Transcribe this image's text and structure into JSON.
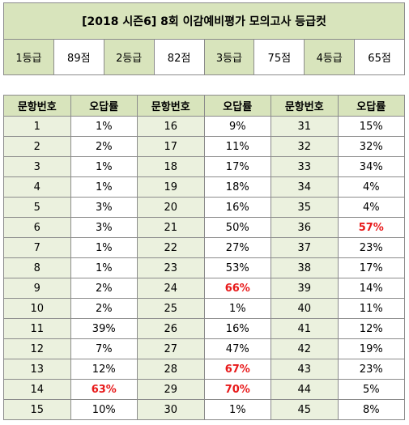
{
  "title": "[2018 시즌6] 8회 이감예비평가 모의고사 등급컷",
  "grade_cuts": [
    {
      "grade": "1등급",
      "score": "89점"
    },
    {
      "grade": "2등급",
      "score": "82점"
    },
    {
      "grade": "3등급",
      "score": "75점"
    },
    {
      "grade": "4등급",
      "score": "65점"
    }
  ],
  "table": {
    "headers": [
      "문항번호",
      "오답률",
      "문항번호",
      "오답률",
      "문항번호",
      "오답률"
    ],
    "rows": [
      [
        {
          "n": "1",
          "r": "1%"
        },
        {
          "n": "16",
          "r": "9%"
        },
        {
          "n": "31",
          "r": "15%"
        }
      ],
      [
        {
          "n": "2",
          "r": "2%"
        },
        {
          "n": "17",
          "r": "11%"
        },
        {
          "n": "32",
          "r": "32%"
        }
      ],
      [
        {
          "n": "3",
          "r": "1%"
        },
        {
          "n": "18",
          "r": "17%"
        },
        {
          "n": "33",
          "r": "34%"
        }
      ],
      [
        {
          "n": "4",
          "r": "1%"
        },
        {
          "n": "19",
          "r": "18%"
        },
        {
          "n": "34",
          "r": "4%"
        }
      ],
      [
        {
          "n": "5",
          "r": "3%"
        },
        {
          "n": "20",
          "r": "16%"
        },
        {
          "n": "35",
          "r": "4%"
        }
      ],
      [
        {
          "n": "6",
          "r": "3%"
        },
        {
          "n": "21",
          "r": "50%"
        },
        {
          "n": "36",
          "r": "57%",
          "hi": true
        }
      ],
      [
        {
          "n": "7",
          "r": "1%"
        },
        {
          "n": "22",
          "r": "27%"
        },
        {
          "n": "37",
          "r": "23%"
        }
      ],
      [
        {
          "n": "8",
          "r": "1%"
        },
        {
          "n": "23",
          "r": "53%"
        },
        {
          "n": "38",
          "r": "17%"
        }
      ],
      [
        {
          "n": "9",
          "r": "2%"
        },
        {
          "n": "24",
          "r": "66%",
          "hi": true
        },
        {
          "n": "39",
          "r": "14%"
        }
      ],
      [
        {
          "n": "10",
          "r": "2%"
        },
        {
          "n": "25",
          "r": "1%"
        },
        {
          "n": "40",
          "r": "11%"
        }
      ],
      [
        {
          "n": "11",
          "r": "39%"
        },
        {
          "n": "26",
          "r": "16%"
        },
        {
          "n": "41",
          "r": "12%"
        }
      ],
      [
        {
          "n": "12",
          "r": "7%"
        },
        {
          "n": "27",
          "r": "47%"
        },
        {
          "n": "42",
          "r": "19%"
        }
      ],
      [
        {
          "n": "13",
          "r": "12%"
        },
        {
          "n": "28",
          "r": "67%",
          "hi": true
        },
        {
          "n": "43",
          "r": "23%"
        }
      ],
      [
        {
          "n": "14",
          "r": "63%",
          "hi": true
        },
        {
          "n": "29",
          "r": "70%",
          "hi": true
        },
        {
          "n": "44",
          "r": "5%"
        }
      ],
      [
        {
          "n": "15",
          "r": "10%"
        },
        {
          "n": "30",
          "r": "1%"
        },
        {
          "n": "45",
          "r": "8%"
        }
      ]
    ]
  },
  "colors": {
    "header_green": "#d8e4bc",
    "number_cell_green": "#ebf1de",
    "highlight_red": "#e8191a"
  }
}
